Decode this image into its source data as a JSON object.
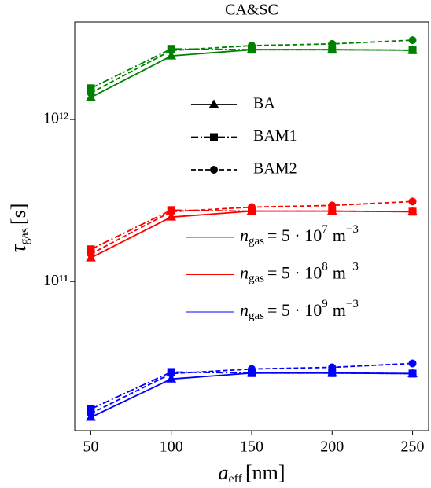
{
  "chart_data": {
    "type": "line",
    "title": "CA&SC",
    "xlabel": {
      "symbol": "a",
      "sub": "eff",
      "unit": "[nm]"
    },
    "ylabel": {
      "symbol": "τ",
      "sub": "gas",
      "unit": "[s]"
    },
    "log_y": true,
    "xlim": [
      40,
      260
    ],
    "xticks": [
      50,
      100,
      150,
      200,
      250
    ],
    "ylim": [
      12000000000,
      4000000000000
    ],
    "yticks": [
      {
        "value": 100000000000,
        "label": "10¹¹"
      },
      {
        "value": 1000000000000,
        "label": "10¹²"
      }
    ],
    "x": [
      50,
      100,
      150,
      200,
      250
    ],
    "legend_styles": [
      {
        "name": "BA",
        "dash": "solid",
        "marker": "triangle"
      },
      {
        "name": "BAM1",
        "dash": "dashdot",
        "marker": "square"
      },
      {
        "name": "BAM2",
        "dash": "dashed",
        "marker": "circle"
      }
    ],
    "legend_colors": [
      {
        "color": "#008000",
        "label": [
          "n",
          "gas",
          "= 5 · 10",
          "7",
          "m",
          "−3"
        ]
      },
      {
        "color": "#ff0000",
        "label": [
          "n",
          "gas",
          "= 5 · 10",
          "8",
          "m",
          "−3"
        ]
      },
      {
        "color": "#0000ff",
        "label": [
          "n",
          "gas",
          "= 5 · 10",
          "9",
          "m",
          "−3"
        ]
      }
    ],
    "series": [
      {
        "color": "#008000",
        "dash": "solid",
        "marker": "triangle",
        "values": [
          1370000000000,
          2470000000000,
          2700000000000,
          2700000000000,
          2680000000000
        ]
      },
      {
        "color": "#008000",
        "dash": "dashdot",
        "marker": "square",
        "values": [
          1560000000000,
          2730000000000,
          2700000000000,
          2700000000000,
          2680000000000
        ]
      },
      {
        "color": "#008000",
        "dash": "dashed",
        "marker": "circle",
        "values": [
          1460000000000,
          2670000000000,
          2860000000000,
          2930000000000,
          3090000000000
        ]
      },
      {
        "color": "#ff0000",
        "dash": "solid",
        "marker": "triangle",
        "values": [
          140000000000,
          250000000000,
          272000000000,
          272000000000,
          270000000000
        ]
      },
      {
        "color": "#ff0000",
        "dash": "dashdot",
        "marker": "square",
        "values": [
          158000000000,
          276000000000,
          272000000000,
          272000000000,
          270000000000
        ]
      },
      {
        "color": "#ff0000",
        "dash": "dashed",
        "marker": "circle",
        "values": [
          148000000000,
          270000000000,
          288000000000,
          295000000000,
          312000000000
        ]
      },
      {
        "color": "#0000ff",
        "dash": "solid",
        "marker": "triangle",
        "values": [
          14500000000,
          25000000000,
          27200000000,
          27200000000,
          27000000000
        ]
      },
      {
        "color": "#0000ff",
        "dash": "dashdot",
        "marker": "square",
        "values": [
          16300000000,
          27600000000,
          27200000000,
          27200000000,
          27000000000
        ]
      },
      {
        "color": "#0000ff",
        "dash": "dashed",
        "marker": "circle",
        "values": [
          15300000000,
          27000000000,
          28800000000,
          29500000000,
          31200000000
        ]
      }
    ]
  }
}
